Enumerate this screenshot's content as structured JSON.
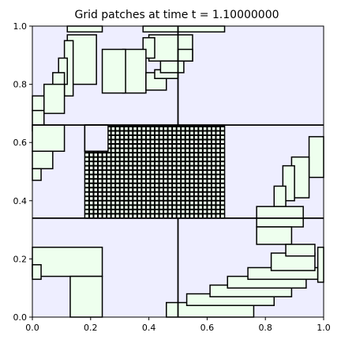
{
  "chart_data": {
    "type": "table",
    "title": "Grid patches at time t =      1.10000000",
    "xlabel": "",
    "ylabel": "",
    "xlim": [
      0,
      1
    ],
    "ylim": [
      0,
      1
    ],
    "x_ticks": [
      "0.0",
      "0.2",
      "0.4",
      "0.6",
      "0.8",
      "1.0"
    ],
    "y_ticks": [
      "0.0",
      "0.2",
      "0.4",
      "0.6",
      "0.8",
      "1.0"
    ],
    "grid": false,
    "colors": {
      "level1_fill": "#eeeeff",
      "level2_fill": "#eeffee",
      "edge": "#000000"
    },
    "level1_dividers": {
      "vertical": [
        [
          0.5,
          0,
          0.34
        ],
        [
          0.5,
          0.66,
          1.0
        ]
      ],
      "horizontal": [
        [
          0.34,
          0,
          1.0
        ],
        [
          0.66,
          0,
          1.0
        ]
      ]
    },
    "patches": [
      {
        "x0": 0.12,
        "y0": 0.98,
        "x1": 0.24,
        "y1": 1.0
      },
      {
        "x0": 0.12,
        "y0": 0.8,
        "x1": 0.22,
        "y1": 0.97
      },
      {
        "x0": 0.11,
        "y0": 0.76,
        "x1": 0.14,
        "y1": 0.95
      },
      {
        "x0": 0.09,
        "y0": 0.8,
        "x1": 0.12,
        "y1": 0.89
      },
      {
        "x0": 0.07,
        "y0": 0.79,
        "x1": 0.11,
        "y1": 0.84
      },
      {
        "x0": 0.06,
        "y0": 0.74,
        "x1": 0.1,
        "y1": 0.79
      },
      {
        "x0": 0.04,
        "y0": 0.7,
        "x1": 0.11,
        "y1": 0.8
      },
      {
        "x0": 0.0,
        "y0": 0.71,
        "x1": 0.04,
        "y1": 0.76
      },
      {
        "x0": 0.0,
        "y0": 0.64,
        "x1": 0.04,
        "y1": 0.71
      },
      {
        "x0": 0.38,
        "y0": 0.98,
        "x1": 0.66,
        "y1": 1.0
      },
      {
        "x0": 0.4,
        "y0": 0.88,
        "x1": 0.55,
        "y1": 0.97
      },
      {
        "x0": 0.38,
        "y0": 0.89,
        "x1": 0.42,
        "y1": 0.96
      },
      {
        "x0": 0.31,
        "y0": 0.77,
        "x1": 0.39,
        "y1": 0.92
      },
      {
        "x0": 0.24,
        "y0": 0.77,
        "x1": 0.32,
        "y1": 0.92
      },
      {
        "x0": 0.39,
        "y0": 0.78,
        "x1": 0.46,
        "y1": 0.84
      },
      {
        "x0": 0.42,
        "y0": 0.82,
        "x1": 0.5,
        "y1": 0.85
      },
      {
        "x0": 0.44,
        "y0": 0.84,
        "x1": 0.52,
        "y1": 0.88
      },
      {
        "x0": 0.5,
        "y0": 0.88,
        "x1": 0.55,
        "y1": 0.92
      },
      {
        "x0": 0.0,
        "y0": 0.57,
        "x1": 0.11,
        "y1": 0.66
      },
      {
        "x0": 0.0,
        "y0": 0.51,
        "x1": 0.07,
        "y1": 0.57
      },
      {
        "x0": 0.0,
        "y0": 0.47,
        "x1": 0.03,
        "y1": 0.51
      },
      {
        "x0": 0.18,
        "y0": 0.57,
        "x1": 0.26,
        "y1": 0.66
      },
      {
        "x0": 0.95,
        "y0": 0.48,
        "x1": 1.0,
        "y1": 0.62
      },
      {
        "x0": 0.89,
        "y0": 0.41,
        "x1": 0.95,
        "y1": 0.55
      },
      {
        "x0": 0.86,
        "y0": 0.4,
        "x1": 0.9,
        "y1": 0.52
      },
      {
        "x0": 0.83,
        "y0": 0.38,
        "x1": 0.87,
        "y1": 0.45
      },
      {
        "x0": 0.77,
        "y0": 0.31,
        "x1": 0.93,
        "y1": 0.38
      },
      {
        "x0": 0.77,
        "y0": 0.25,
        "x1": 0.89,
        "y1": 0.31
      },
      {
        "x0": 0.0,
        "y0": 0.14,
        "x1": 0.24,
        "y1": 0.24
      },
      {
        "x0": 0.13,
        "y0": 0.0,
        "x1": 0.24,
        "y1": 0.14
      },
      {
        "x0": 0.0,
        "y0": 0.13,
        "x1": 0.03,
        "y1": 0.18
      },
      {
        "x0": 0.46,
        "y0": 0.0,
        "x1": 0.76,
        "y1": 0.05
      },
      {
        "x0": 0.53,
        "y0": 0.04,
        "x1": 0.83,
        "y1": 0.08
      },
      {
        "x0": 0.61,
        "y0": 0.07,
        "x1": 0.89,
        "y1": 0.11
      },
      {
        "x0": 0.67,
        "y0": 0.1,
        "x1": 0.94,
        "y1": 0.14
      },
      {
        "x0": 0.74,
        "y0": 0.13,
        "x1": 0.98,
        "y1": 0.17
      },
      {
        "x0": 0.82,
        "y0": 0.16,
        "x1": 0.97,
        "y1": 0.22
      },
      {
        "x0": 0.87,
        "y0": 0.21,
        "x1": 0.97,
        "y1": 0.25
      },
      {
        "x0": 0.98,
        "y0": 0.12,
        "x1": 1.0,
        "y1": 0.24
      }
    ],
    "fine_grid": {
      "x0": 0.18,
      "y0": 0.34,
      "x1": 0.66,
      "y1": 0.66,
      "cell": 0.015,
      "cutout": [
        0.18,
        0.57,
        0.26,
        0.66
      ]
    }
  }
}
